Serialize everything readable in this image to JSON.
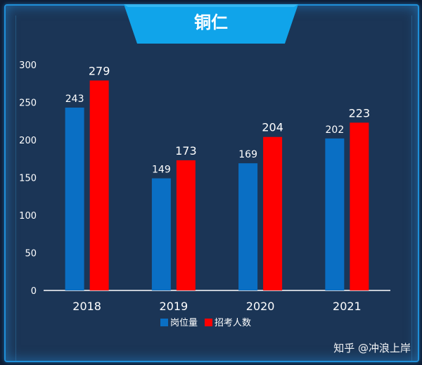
{
  "title": "铜仁",
  "watermark": "知乎 @冲浪上岸",
  "colors": {
    "background": "#1b3556",
    "frame": "#1f8fd8",
    "banner": "#10a4ea",
    "series_post": "#0a6fc4",
    "series_applicants": "#ff0000"
  },
  "chart_data": {
    "type": "bar",
    "categories": [
      "2018",
      "2019",
      "2020",
      "2021"
    ],
    "series": [
      {
        "name": "岗位量",
        "values": [
          243,
          149,
          169,
          202
        ]
      },
      {
        "name": "招考人数",
        "values": [
          279,
          173,
          204,
          223
        ]
      }
    ],
    "ylim": [
      0,
      300
    ],
    "yticks": [
      0,
      50,
      100,
      150,
      200,
      250,
      300
    ],
    "grid": false,
    "legend": "bottom-center",
    "title": "铜仁"
  }
}
